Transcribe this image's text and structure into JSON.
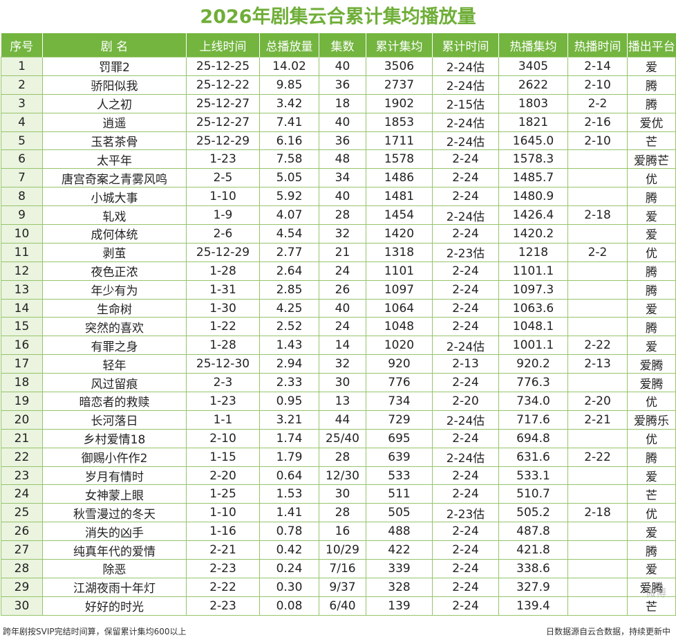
{
  "title": "2026年剧集云合累计集均播放量",
  "table": {
    "headers": [
      "序号",
      "剧  名",
      "上线时间",
      "总播放量",
      "集数",
      "累计集均",
      "累计时间",
      "热播集均",
      "热播时间",
      "播出平台"
    ],
    "rows": [
      [
        "1",
        "罚罪2",
        "25-12-25",
        "14.02",
        "40",
        "3506",
        "2-24估",
        "3405",
        "2-14",
        "爱"
      ],
      [
        "2",
        "骄阳似我",
        "25-12-22",
        "9.85",
        "36",
        "2737",
        "2-24估",
        "2622",
        "2-10",
        "腾"
      ],
      [
        "3",
        "人之初",
        "25-12-27",
        "3.42",
        "18",
        "1902",
        "2-15估",
        "1803",
        "2-2",
        "腾"
      ],
      [
        "4",
        "逍遥",
        "25-12-27",
        "7.41",
        "40",
        "1853",
        "2-24估",
        "1821",
        "2-16",
        "爱优"
      ],
      [
        "5",
        "玉茗茶骨",
        "25-12-29",
        "6.16",
        "36",
        "1711",
        "2-24估",
        "1645.0",
        "2-10",
        "芒"
      ],
      [
        "6",
        "太平年",
        "1-23",
        "7.58",
        "48",
        "1578",
        "2-24",
        "1578.3",
        "",
        "爱腾芒"
      ],
      [
        "7",
        "唐宫奇案之青雾风鸣",
        "2-5",
        "5.05",
        "34",
        "1486",
        "2-24",
        "1485.7",
        "",
        "优"
      ],
      [
        "8",
        "小城大事",
        "1-10",
        "5.92",
        "40",
        "1481",
        "2-24",
        "1480.9",
        "",
        "腾"
      ],
      [
        "9",
        "轧戏",
        "1-9",
        "4.07",
        "28",
        "1454",
        "2-24估",
        "1426.4",
        "2-18",
        "爱"
      ],
      [
        "10",
        "成何体统",
        "2-6",
        "4.54",
        "32",
        "1420",
        "2-24",
        "1420.2",
        "",
        "爱"
      ],
      [
        "11",
        "剥茧",
        "25-12-29",
        "2.77",
        "21",
        "1318",
        "2-23估",
        "1218",
        "2-2",
        "优"
      ],
      [
        "12",
        "夜色正浓",
        "1-28",
        "2.64",
        "24",
        "1101",
        "2-24",
        "1101.1",
        "",
        "腾"
      ],
      [
        "13",
        "年少有为",
        "1-31",
        "2.85",
        "26",
        "1097",
        "2-24",
        "1097.3",
        "",
        "腾"
      ],
      [
        "14",
        "生命树",
        "1-30",
        "4.25",
        "40",
        "1064",
        "2-24",
        "1063.6",
        "",
        "爱"
      ],
      [
        "15",
        "突然的喜欢",
        "1-22",
        "2.52",
        "24",
        "1048",
        "2-24",
        "1048.1",
        "",
        "腾"
      ],
      [
        "16",
        "有罪之身",
        "1-28",
        "1.43",
        "14",
        "1020",
        "2-24估",
        "1001.1",
        "2-22",
        "爱"
      ],
      [
        "17",
        "轻年",
        "25-12-30",
        "2.94",
        "32",
        "920",
        "2-13",
        "920.2",
        "2-13",
        "爱腾"
      ],
      [
        "18",
        "风过留痕",
        "2-3",
        "2.33",
        "30",
        "776",
        "2-24",
        "776.3",
        "",
        "爱腾"
      ],
      [
        "19",
        "暗恋者的救赎",
        "1-23",
        "0.95",
        "13",
        "734",
        "2-20",
        "734.0",
        "2-20",
        "优"
      ],
      [
        "20",
        "长河落日",
        "1-1",
        "3.21",
        "44",
        "729",
        "2-24估",
        "717.6",
        "2-21",
        "爱腾乐"
      ],
      [
        "21",
        "乡村爱情18",
        "2-10",
        "1.74",
        "25/40",
        "695",
        "2-24",
        "694.8",
        "",
        "优"
      ],
      [
        "22",
        "御赐小仵作2",
        "1-15",
        "1.79",
        "28",
        "639",
        "2-24估",
        "631.6",
        "2-22",
        "腾"
      ],
      [
        "23",
        "岁月有情时",
        "2-20",
        "0.64",
        "12/30",
        "533",
        "2-24",
        "533.1",
        "",
        "爱"
      ],
      [
        "24",
        "女神蒙上眼",
        "1-25",
        "1.53",
        "30",
        "511",
        "2-24",
        "510.7",
        "",
        "芒"
      ],
      [
        "25",
        "秋雪漫过的冬天",
        "1-10",
        "1.41",
        "28",
        "505",
        "2-23估",
        "505.2",
        "2-18",
        "优"
      ],
      [
        "26",
        "消失的凶手",
        "1-16",
        "0.78",
        "16",
        "488",
        "2-24",
        "487.8",
        "",
        "爱"
      ],
      [
        "27",
        "纯真年代的爱情",
        "2-21",
        "0.42",
        "10/29",
        "422",
        "2-24",
        "421.8",
        "",
        "腾"
      ],
      [
        "28",
        "除恶",
        "2-23",
        "0.24",
        "7/16",
        "339",
        "2-24",
        "338.6",
        "",
        "爱"
      ],
      [
        "29",
        "江湖夜雨十年灯",
        "2-22",
        "0.30",
        "9/37",
        "328",
        "2-24",
        "327.9",
        "",
        "爱腾"
      ],
      [
        "30",
        "好好的时光",
        "2-23",
        "0.08",
        "6/40",
        "139",
        "2-24",
        "139.4",
        "",
        "芒"
      ]
    ]
  },
  "footer": {
    "note_left": "跨年剧按SVIP完结时间算，保留累计集均600以上",
    "note_right": "日数据源自云合数据，持续更新中"
  },
  "watermark": "微博"
}
